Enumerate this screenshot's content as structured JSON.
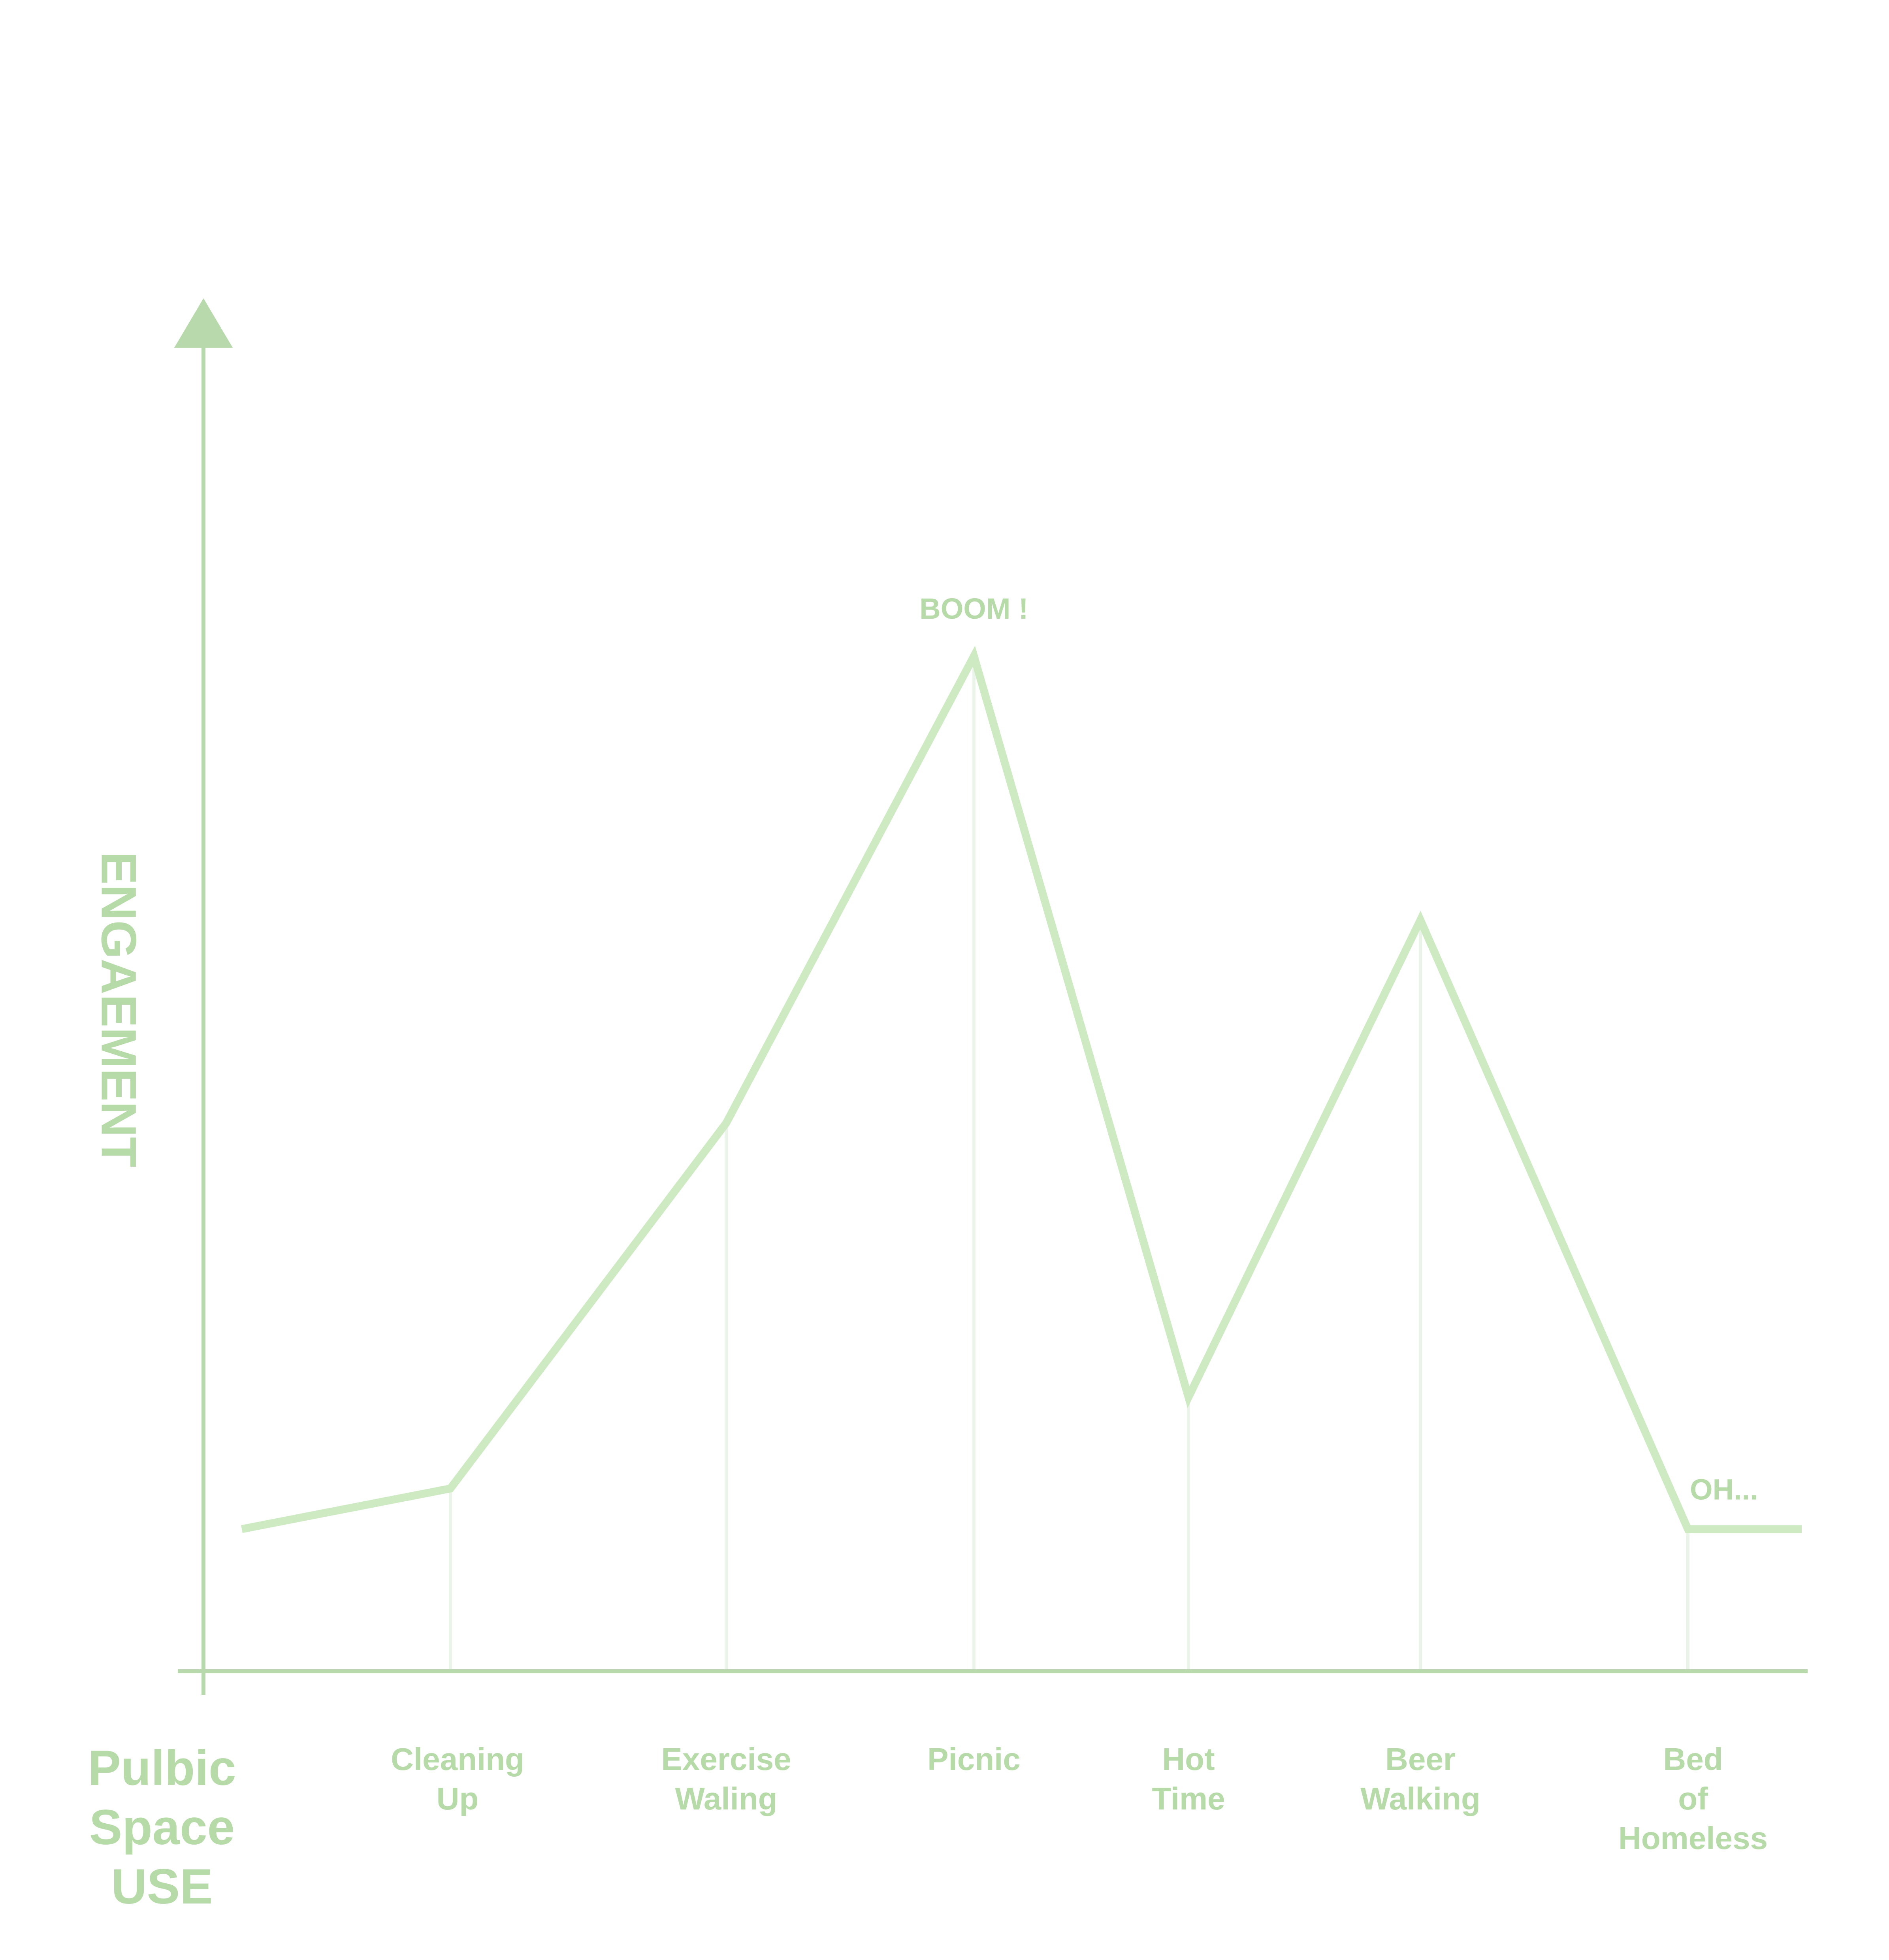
{
  "chart_data": {
    "type": "line",
    "title": "",
    "xlabel": [
      "Pulbic",
      "Space",
      "USE"
    ],
    "ylabel": "ENGAEMENT",
    "categories": [
      [
        "Cleaning",
        "Up"
      ],
      [
        "Exercise",
        "Waling"
      ],
      [
        "Picnic"
      ],
      [
        "Hot",
        "Time"
      ],
      [
        "Beer",
        "Walking"
      ],
      [
        "Bed",
        "of",
        "Homeless"
      ]
    ],
    "values": [
      1.8,
      5.4,
      10.0,
      2.7,
      7.4,
      1.4
    ],
    "start_value": 1.4,
    "end_value": 1.4,
    "annotations": [
      {
        "text": "BOOM !",
        "category_index": 2
      },
      {
        "text": "OH...",
        "category_index": 5
      }
    ],
    "ylim": [
      0,
      13
    ],
    "grid": false,
    "legend": "none",
    "y_ticks": "none",
    "colors": {
      "line": "#cdeac3",
      "axis": "#b7d9ab",
      "text": "#b6daa8",
      "drop_lines": "#ebf4e8"
    }
  }
}
